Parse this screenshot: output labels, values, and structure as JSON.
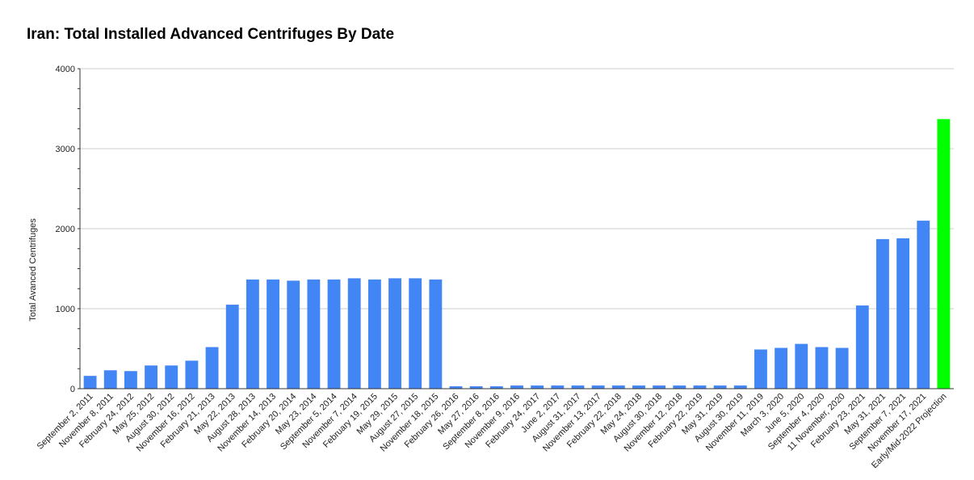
{
  "chart_data": {
    "type": "bar",
    "title": "Iran: Total Installed Advanced Centrifuges By Date",
    "xlabel": "",
    "ylabel": "Total Avanced Centrifuges",
    "ylim": [
      0,
      4000
    ],
    "yticks": [
      "0",
      "1000",
      "2000",
      "3000",
      "4000"
    ],
    "grid": true,
    "legend": "none",
    "colors": {
      "bar": "#4285f4",
      "highlight": "#00ff00",
      "grid": "#cccccc",
      "axis": "#333333"
    },
    "categories": [
      "September 2, 2011",
      "November 8, 2011",
      "February 24, 2012",
      "May 25, 2012",
      "August 30, 2012",
      "November 16, 2012",
      "February 21, 2013",
      "May 22, 2013",
      "August 28, 2013",
      "November 14, 2013",
      "February 20, 2014",
      "May 23, 2014",
      "September 5, 2014",
      "November 7, 2014",
      "February 19, 2015",
      "May 29, 2015",
      "August 27, 2015",
      "November 18, 2015",
      "February 26, 2016",
      "May 27, 2016",
      "September 8, 2016",
      "November 9, 2016",
      "February 24, 2017",
      "June 2, 2017",
      "August 31, 2017",
      "November 13, 2017",
      "February 22, 2018",
      "May 24, 2018",
      "August 30, 2018",
      "November 12, 2018",
      "February 22, 2019",
      "May 31, 2019",
      "August 30, 2019",
      "November 11, 2019",
      "March 3, 2020",
      "June 5, 2020",
      "September 4, 2020",
      "11 November, 2020",
      "February 23, 2021",
      "May 31, 2021",
      "September 7, 2021",
      "November 17, 2021",
      "Early/Mid-2022 Projection"
    ],
    "values": [
      160,
      230,
      220,
      290,
      290,
      350,
      520,
      1050,
      1365,
      1365,
      1350,
      1365,
      1365,
      1380,
      1365,
      1380,
      1380,
      1365,
      30,
      30,
      30,
      40,
      40,
      40,
      40,
      40,
      40,
      40,
      40,
      40,
      40,
      40,
      40,
      490,
      510,
      560,
      520,
      510,
      1040,
      1870,
      1880,
      2100,
      3370
    ],
    "highlight_index": 42
  }
}
